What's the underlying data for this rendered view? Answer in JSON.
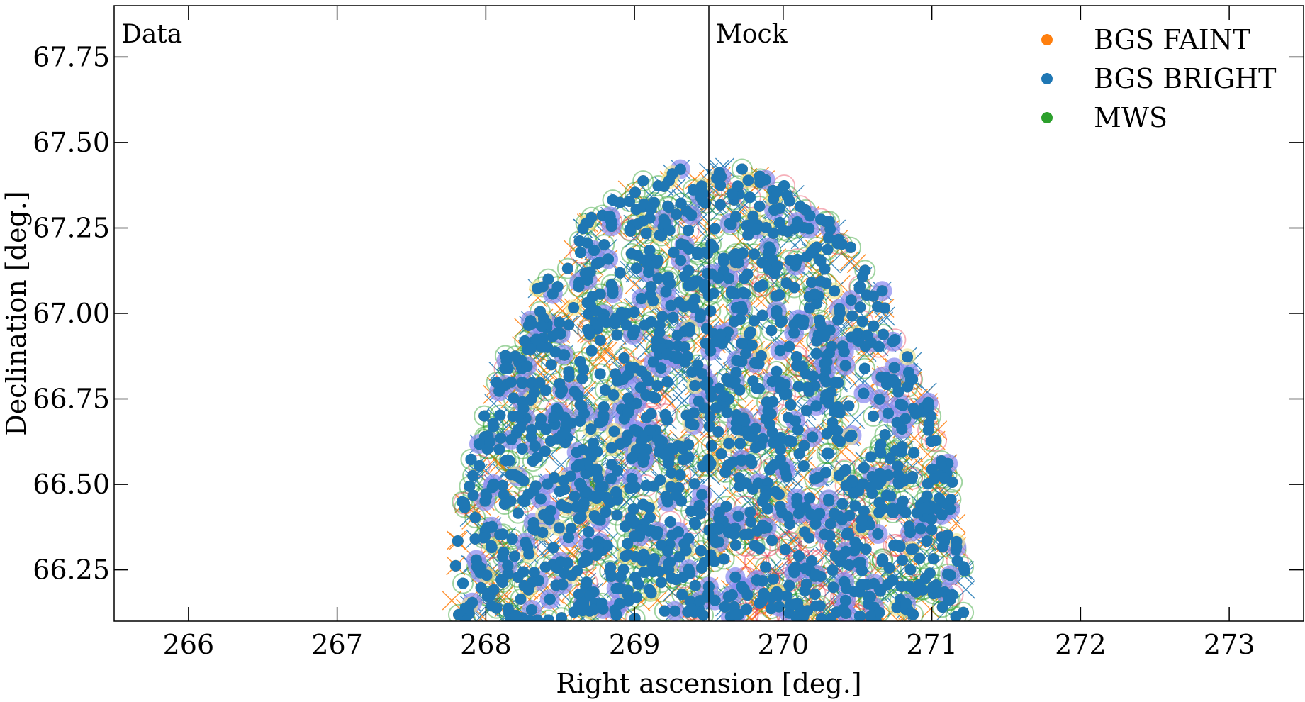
{
  "chart_data": {
    "type": "scatter",
    "xlabel": "Right ascension [deg.]",
    "ylabel": "Declination [deg.]",
    "xlim": [
      265.5,
      273.5
    ],
    "ylim": [
      66.1,
      67.9
    ],
    "x_ticks": [
      "266",
      "267",
      "268",
      "269",
      "270",
      "271",
      "272",
      "273"
    ],
    "y_ticks": [
      "66.25",
      "66.50",
      "66.75",
      "67.00",
      "67.25",
      "67.50",
      "67.75"
    ],
    "x_tick_values": [
      266,
      267,
      268,
      269,
      270,
      271,
      272,
      273
    ],
    "y_tick_values": [
      66.25,
      66.5,
      66.75,
      67.0,
      67.25,
      67.5,
      67.75
    ],
    "panel_divider_ra": 269.5,
    "panels": [
      {
        "label": "Data",
        "ra_range": [
          265.5,
          269.5
        ]
      },
      {
        "label": "Mock",
        "ra_range": [
          269.5,
          273.5
        ]
      }
    ],
    "footprint_ra_center": 269.5,
    "footprint_dec_center": 66.0,
    "footprint_radius_deg": 1.75,
    "legend_position": "top-right",
    "series": [
      {
        "name": "BGS FAINT",
        "color": "#ff7f0e",
        "marker": "filled-circle",
        "approx_count": 900
      },
      {
        "name": "BGS BRIGHT",
        "color": "#1f77b4",
        "marker": "filled-circle",
        "approx_count": 1700
      },
      {
        "name": "MWS",
        "color": "#2ca02c",
        "marker": "filled-circle",
        "approx_count": 1200
      }
    ],
    "background_layers": [
      {
        "kind": "crosses",
        "colors": [
          "#1f77b4",
          "#ff7f0e"
        ]
      },
      {
        "kind": "open-circles",
        "color": "#2ca02c"
      },
      {
        "kind": "open-circles",
        "color": "#e8384f"
      },
      {
        "kind": "filled-circles",
        "color": "#8f8ff0"
      },
      {
        "kind": "filled-circles",
        "color": "#f0e68c"
      }
    ],
    "grid": false
  }
}
